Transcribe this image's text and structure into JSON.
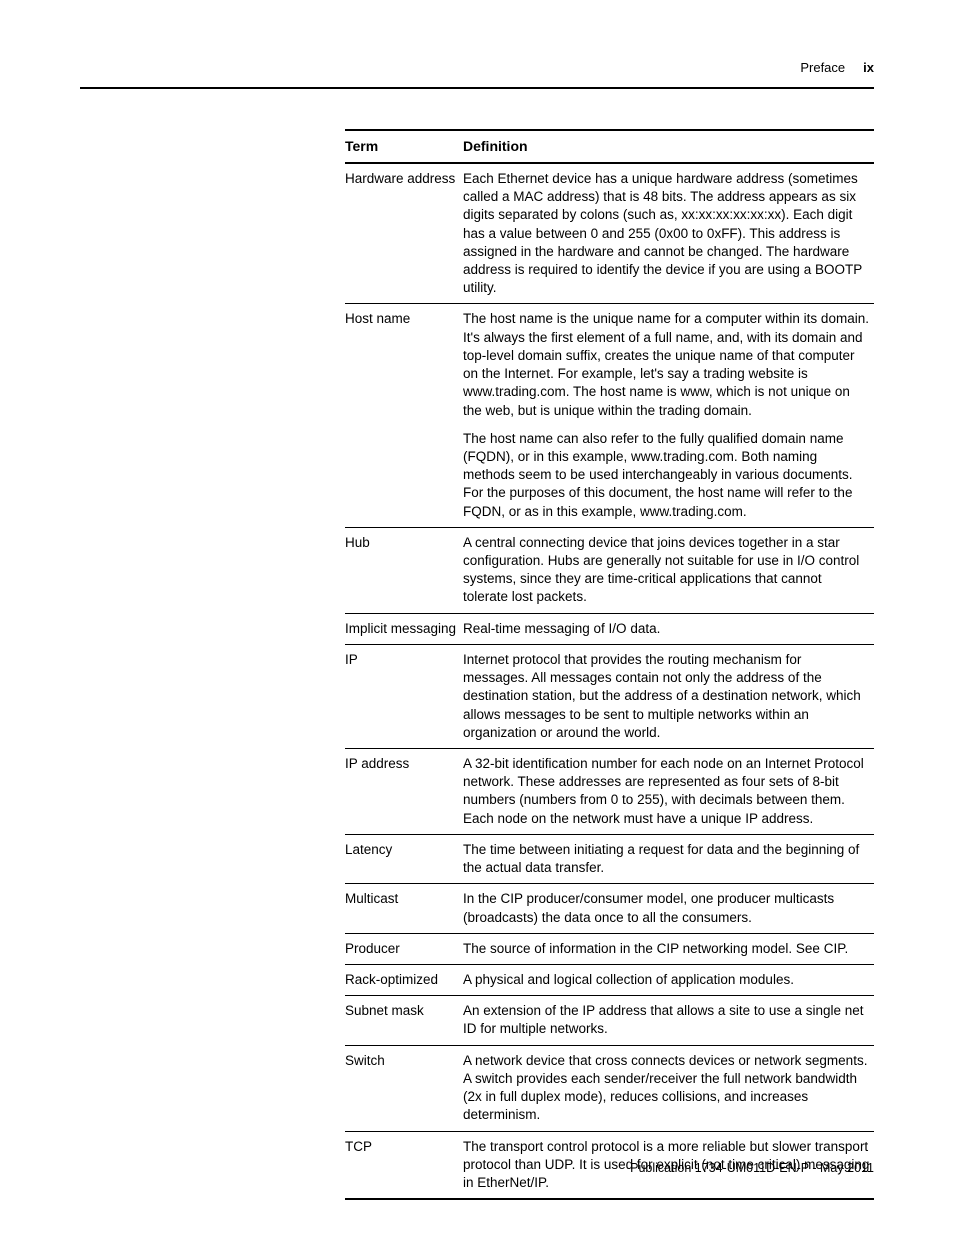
{
  "header": {
    "section": "Preface",
    "page_number": "ix"
  },
  "table": {
    "col_term": "Term",
    "col_def": "Definition",
    "rows": [
      {
        "term": "Hardware address",
        "def": "Each Ethernet device has a unique hardware address (sometimes called a MAC address) that is 48 bits. The address appears as six digits separated by colons (such as, xx:xx:xx:xx:xx:xx). Each digit has a value between 0 and 255 (0x00 to 0xFF). This address is assigned in the hardware and cannot be changed. The hardware address is required to identify the device if you are using a BOOTP utility."
      },
      {
        "term": "Host name",
        "def": "The host name is the unique name for a computer within its domain. It's always the first element of a full name, and, with its domain and top-level domain suffix, creates the unique name of that computer on the Internet. For example, let's say a trading website is www.trading.com. The host name is www, which is not unique on the web, but is unique within the trading domain.",
        "def2": "The host name can also refer to the fully qualified domain name (FQDN), or in this example, www.trading.com. Both naming methods seem to be used interchangeably in various documents. For the purposes of this document, the host name will refer to the FQDN, or as in this example, www.trading.com."
      },
      {
        "term": "Hub",
        "def": "A central connecting device that joins devices together in a star configuration. Hubs are generally not suitable for use in I/O control systems, since they are time-critical applications that cannot tolerate lost packets."
      },
      {
        "term": "Implicit messaging",
        "def": "Real-time messaging of I/O data."
      },
      {
        "term": "IP",
        "def": "Internet protocol that provides the routing mechanism for messages. All messages contain not only the address of the destination station, but the address of a destination network, which allows messages to be sent to multiple networks within an organization or around the world."
      },
      {
        "term": "IP address",
        "def": "A 32-bit identification number for each node on an Internet Protocol network. These addresses are represented as four sets of 8-bit numbers (numbers from 0 to 255), with decimals between them. Each node on the network must have a unique IP address."
      },
      {
        "term": "Latency",
        "def": "The time between initiating a request for data and the beginning of the actual data transfer."
      },
      {
        "term": "Multicast",
        "def": "In the CIP producer/consumer model, one producer multicasts (broadcasts) the data once to all the consumers."
      },
      {
        "term": "Producer",
        "def": "The source of information in the CIP networking model. See CIP."
      },
      {
        "term": "Rack-optimized",
        "def": "A physical and logical collection of application modules."
      },
      {
        "term": "Subnet mask",
        "def": "An extension of the IP address that allows a site to use a single net ID for multiple networks."
      },
      {
        "term": "Switch",
        "def": "A network device that cross connects devices or network segments. A switch provides each sender/receiver the full network bandwidth (2x in full duplex mode), reduces collisions, and increases determinism."
      },
      {
        "term": "TCP",
        "def": "The transport control protocol is a more reliable but slower transport protocol than UDP. It is used for explicit (not time critical) messaging in EtherNet/IP."
      }
    ]
  },
  "footer": {
    "publication": "Publication 1734-UM011D-EN-P - May 2011"
  }
}
